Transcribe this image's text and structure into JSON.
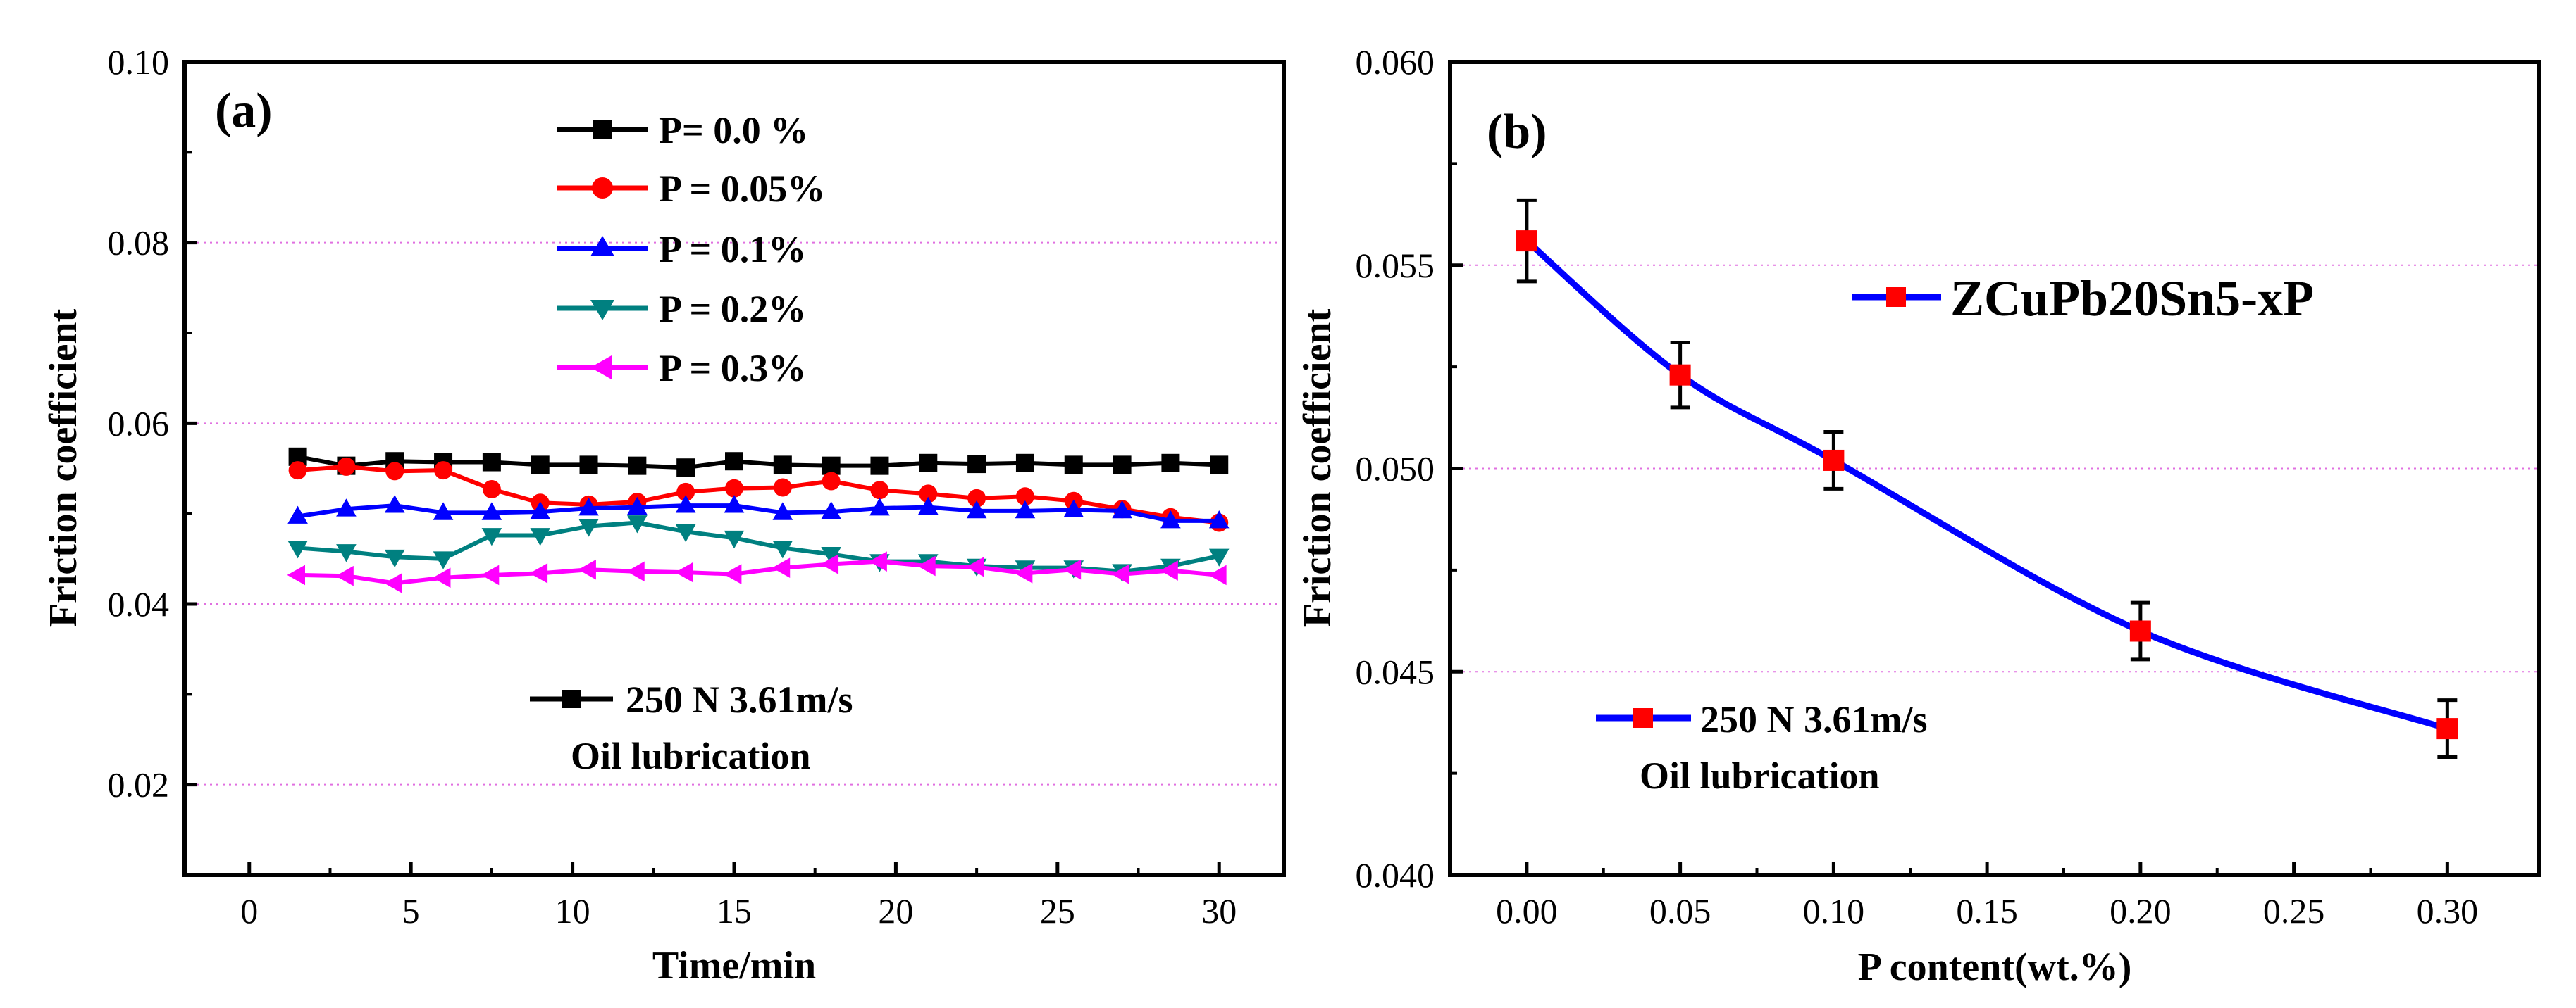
{
  "chart_data": [
    {
      "type": "line",
      "panel_label": "(a)",
      "xlabel": "Time/min",
      "ylabel": "Friction coefficient",
      "xlim": [
        -2,
        32
      ],
      "ylim": [
        0.01,
        0.1
      ],
      "xticks": [
        0,
        5,
        10,
        15,
        20,
        25,
        30
      ],
      "xtick_labels": [
        "0",
        "5",
        "10",
        "15",
        "20",
        "25",
        "30"
      ],
      "yticks": [
        0.02,
        0.04,
        0.06,
        0.08,
        0.1
      ],
      "ytick_labels": [
        "0.02",
        "0.04",
        "0.06",
        "0.08",
        "0.10"
      ],
      "grid": "horizontal dotted",
      "x": [
        1.5,
        3,
        4.5,
        6,
        7.5,
        9,
        10.5,
        12,
        13.5,
        15,
        16.5,
        18,
        19.5,
        21,
        22.5,
        24,
        25.5,
        27,
        28.5,
        30
      ],
      "series": [
        {
          "name": "P= 0.0 %",
          "color": "#000000",
          "marker": "square",
          "values": [
            0.0563,
            0.0553,
            0.0558,
            0.0557,
            0.0557,
            0.0554,
            0.0554,
            0.0553,
            0.0551,
            0.0558,
            0.0554,
            0.0553,
            0.0553,
            0.0556,
            0.0555,
            0.0556,
            0.0554,
            0.0554,
            0.0556,
            0.0554
          ]
        },
        {
          "name": "P = 0.05%",
          "color": "#ff0000",
          "marker": "circle",
          "values": [
            0.0548,
            0.0552,
            0.0547,
            0.0548,
            0.0527,
            0.0512,
            0.051,
            0.0513,
            0.0524,
            0.0528,
            0.0529,
            0.0536,
            0.0526,
            0.0522,
            0.0517,
            0.0519,
            0.0514,
            0.0505,
            0.0496,
            0.049
          ]
        },
        {
          "name": "P = 0.1%",
          "color": "#0000ff",
          "marker": "triangle-up",
          "values": [
            0.0497,
            0.0505,
            0.0509,
            0.0501,
            0.0501,
            0.0502,
            0.0506,
            0.0507,
            0.0509,
            0.0509,
            0.0501,
            0.0502,
            0.0506,
            0.0507,
            0.0503,
            0.0503,
            0.0504,
            0.0503,
            0.0492,
            0.0492
          ]
        },
        {
          "name": "P = 0.2%",
          "color": "#008080",
          "marker": "triangle-down",
          "values": [
            0.0462,
            0.0458,
            0.0452,
            0.045,
            0.0476,
            0.0476,
            0.0486,
            0.049,
            0.048,
            0.0473,
            0.0462,
            0.0455,
            0.0447,
            0.0447,
            0.0442,
            0.044,
            0.044,
            0.0436,
            0.0442,
            0.0453
          ]
        },
        {
          "name": "P = 0.3%",
          "color": "#ff00ff",
          "marker": "triangle-left",
          "values": [
            0.0432,
            0.0431,
            0.0423,
            0.0429,
            0.0432,
            0.0434,
            0.0438,
            0.0436,
            0.0435,
            0.0433,
            0.044,
            0.0444,
            0.0447,
            0.0442,
            0.0441,
            0.0434,
            0.0438,
            0.0433,
            0.0437,
            0.0432
          ]
        }
      ],
      "annotation": {
        "series_label": "250 N 3.61m/s",
        "line2": "Oil lubrication"
      }
    },
    {
      "type": "line",
      "panel_label": "(b)",
      "xlabel": "P content(wt.%)",
      "ylabel": "Friction coefficient",
      "xlim": [
        -0.025,
        0.33
      ],
      "ylim": [
        0.04,
        0.06
      ],
      "xticks": [
        0.0,
        0.05,
        0.1,
        0.15,
        0.2,
        0.25,
        0.3
      ],
      "xtick_labels": [
        "0.00",
        "0.05",
        "0.10",
        "0.15",
        "0.20",
        "0.25",
        "0.30"
      ],
      "yticks": [
        0.04,
        0.045,
        0.05,
        0.055,
        0.06
      ],
      "ytick_labels": [
        "0.040",
        "0.045",
        "0.050",
        "0.055",
        "0.060"
      ],
      "grid": "horizontal dotted",
      "series": [
        {
          "name": "ZCuPb20Sn5-xP",
          "color": "#0000ff",
          "marker_color": "#ff0000",
          "marker": "square",
          "x": [
            0.0,
            0.05,
            0.1,
            0.2,
            0.3
          ],
          "values": [
            0.0556,
            0.0523,
            0.0502,
            0.046,
            0.0436
          ],
          "error": [
            0.001,
            0.0008,
            0.0007,
            0.0007,
            0.0007
          ]
        }
      ],
      "annotation": {
        "series_label": "250 N 3.61m/s",
        "line2": "Oil lubrication"
      }
    }
  ]
}
